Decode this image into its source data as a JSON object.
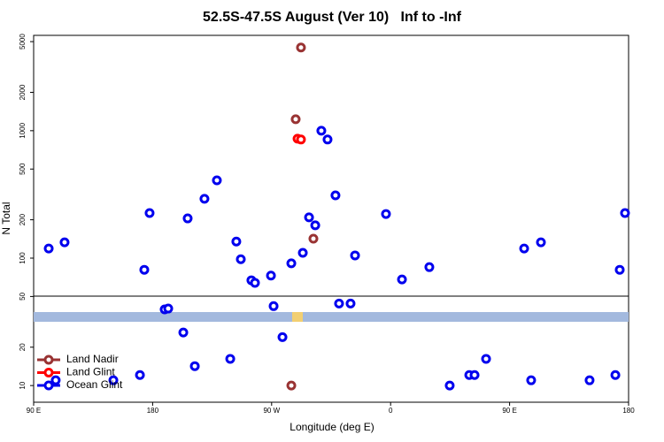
{
  "chart_data": {
    "type": "scatter",
    "title": "52.5S-47.5S August (Ver 10)   Inf to -Inf",
    "x_label": "Longitude (deg E)",
    "y_label": "N Total",
    "xlim": [
      90,
      540
    ],
    "xticks": [
      {
        "value": 90,
        "label": "90 E"
      },
      {
        "value": 180,
        "label": "180"
      },
      {
        "value": 270,
        "label": "90 W"
      },
      {
        "value": 360,
        "label": "0"
      },
      {
        "value": 450,
        "label": "90 E"
      },
      {
        "value": 540,
        "label": "180"
      }
    ],
    "ylim": [
      7.4,
      5600
    ],
    "log_y": true,
    "yticks": [
      10,
      20,
      50,
      100,
      200,
      500,
      1000,
      2000,
      5000
    ],
    "legend": "bottom-left",
    "series": [
      {
        "name": "Land Nadir",
        "color": "#993333",
        "x": [
          292.2,
          288.2,
          301.6,
          284.9
        ],
        "values": [
          4497,
          1231,
          142,
          10
        ]
      },
      {
        "name": "Land Glint",
        "color": "#ff0000",
        "x": [
          289.6,
          292.2
        ],
        "values": [
          866,
          853
        ]
      },
      {
        "name": "Ocean Glint",
        "color": "#0000ee",
        "x": [
          101.4,
          113.4,
          173.7,
          177.7,
          206.5,
          219.2,
          228.6,
          243.3,
          246.7,
          254.7,
          257.4,
          269.5,
          271.5,
          278.2,
          284.9,
          293.6,
          298.3,
          303,
          307.6,
          312.3,
          318.3,
          321,
          329.7,
          333.1,
          356.5,
          368.6,
          389.3,
          404.7,
          419.5,
          423.5,
          432.2,
          461,
          473.7,
          466.3,
          510.5,
          530,
          533.3,
          537.3,
          106.7,
          150.3,
          170.4,
          189.1,
          191.8,
          203.2,
          211.9,
          238.7
        ],
        "values": [
          119,
          133,
          81,
          226,
          205,
          292,
          408,
          135,
          98,
          67,
          64,
          73,
          42,
          24,
          91,
          110,
          209,
          181,
          1000,
          853,
          311,
          44,
          44,
          105,
          222,
          68,
          85,
          10,
          12.1,
          12.1,
          16.2,
          119,
          133,
          11,
          11,
          12.1,
          81,
          226,
          11,
          11,
          12.1,
          39.6,
          40.2,
          26.1,
          14.2,
          16.2
        ]
      }
    ]
  }
}
